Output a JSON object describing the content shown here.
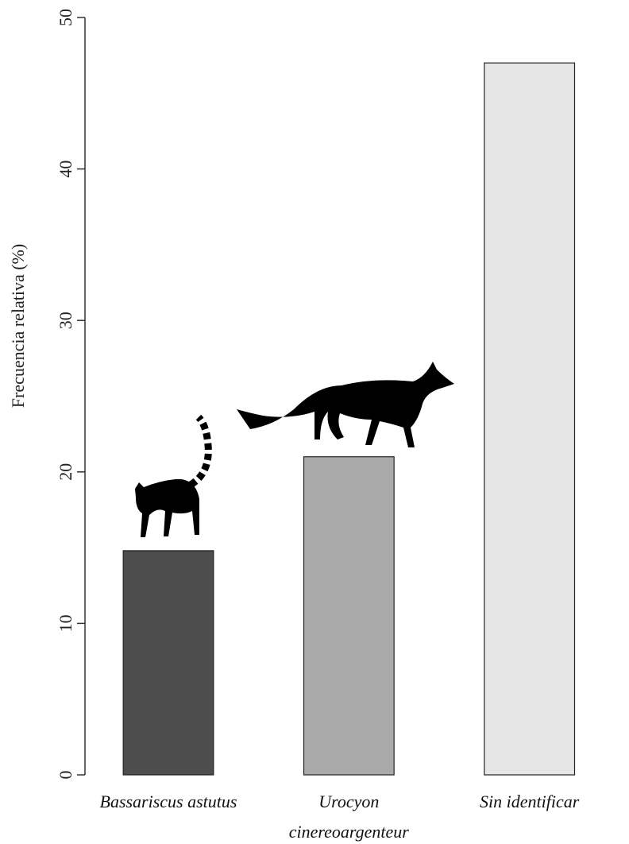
{
  "chart_data": {
    "type": "bar",
    "y_label": "Frecuencia relativa (%)",
    "categories": [
      "Bassariscus astutus",
      "Urocyon cinereoargenteur",
      "Sin identificar"
    ],
    "values": [
      14.8,
      21,
      47
    ],
    "colors": [
      "#4d4d4d",
      "#aaaaaa",
      "#e6e6e6"
    ],
    "ylim": [
      0,
      50
    ],
    "yticks": [
      0,
      10,
      20,
      30,
      40,
      50
    ]
  }
}
